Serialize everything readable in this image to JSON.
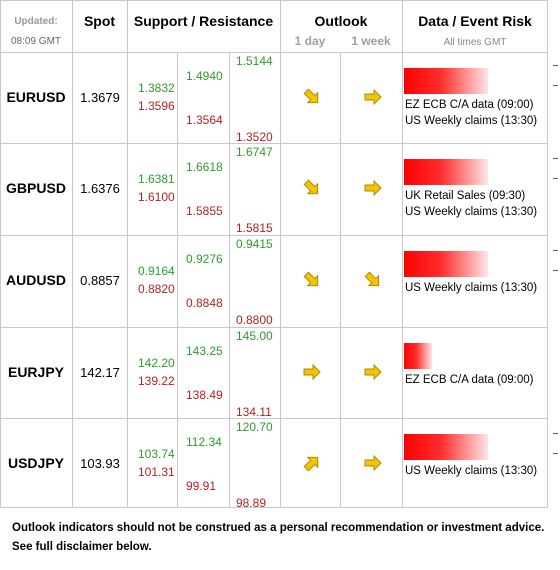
{
  "header": {
    "updated_label": "Updated:",
    "updated_time": "08:09 GMT",
    "spot": "Spot",
    "support_resistance": "Support / Resistance",
    "outlook": "Outlook",
    "outlook_1day": "1 day",
    "outlook_1week": "1 week",
    "event_risk": "Data / Event Risk",
    "all_times": "All times GMT"
  },
  "rows": [
    {
      "pair": "EURUSD",
      "spot": "1.3679",
      "s1": "1.3832",
      "s2": "1.3596",
      "m1": "1.4940",
      "m2": "1.3564",
      "o1": "1.5144",
      "o2": "1.3520",
      "day": "down-right",
      "week": "right",
      "bar": 0.6,
      "events": [
        "EZ ECB C/A data (09:00)",
        "US Weekly claims (13:30)"
      ]
    },
    {
      "pair": "GBPUSD",
      "spot": "1.6376",
      "s1": "1.6381",
      "s2": "1.6100",
      "m1": "1.6618",
      "m2": "1.5855",
      "o1": "1.6747",
      "o2": "1.5815",
      "day": "down-right",
      "week": "right",
      "bar": 0.6,
      "events": [
        "UK Retail Sales (09:30)",
        "US Weekly claims (13:30)"
      ]
    },
    {
      "pair": "AUDUSD",
      "spot": "0.8857",
      "s1": "0.9164",
      "s2": "0.8820",
      "m1": "0.9276",
      "m2": "0.8848",
      "o1": "0.9415",
      "o2": "0.8800",
      "day": "down-right",
      "week": "down-right",
      "bar": 0.6,
      "events": [
        "US Weekly claims (13:30)"
      ]
    },
    {
      "pair": "EURJPY",
      "spot": "142.17",
      "s1": "142.20",
      "s2": "139.22",
      "m1": "143.25",
      "m2": "138.49",
      "o1": "145.00",
      "o2": "134.11",
      "day": "right",
      "week": "right",
      "bar": 0.2,
      "events": [
        "EZ ECB C/A data (09:00)"
      ]
    },
    {
      "pair": "USDJPY",
      "spot": "103.93",
      "s1": "103.74",
      "s2": "101.31",
      "m1": "112.34",
      "m2": "99.91",
      "o1": "120.70",
      "o2": "98.89",
      "day": "up-right",
      "week": "right",
      "bar": 0.6,
      "events": [
        "US Weekly claims (13:30)"
      ]
    }
  ],
  "footer": {
    "line1": "Outlook indicators should not be construed as a personal recommendation or investment advice.",
    "line2": "See full disclaimer below."
  },
  "colors": {
    "support": "#2e9b2e",
    "resistance": "#b22222",
    "arrow": "#f5c400",
    "bar": "#ff0000"
  }
}
